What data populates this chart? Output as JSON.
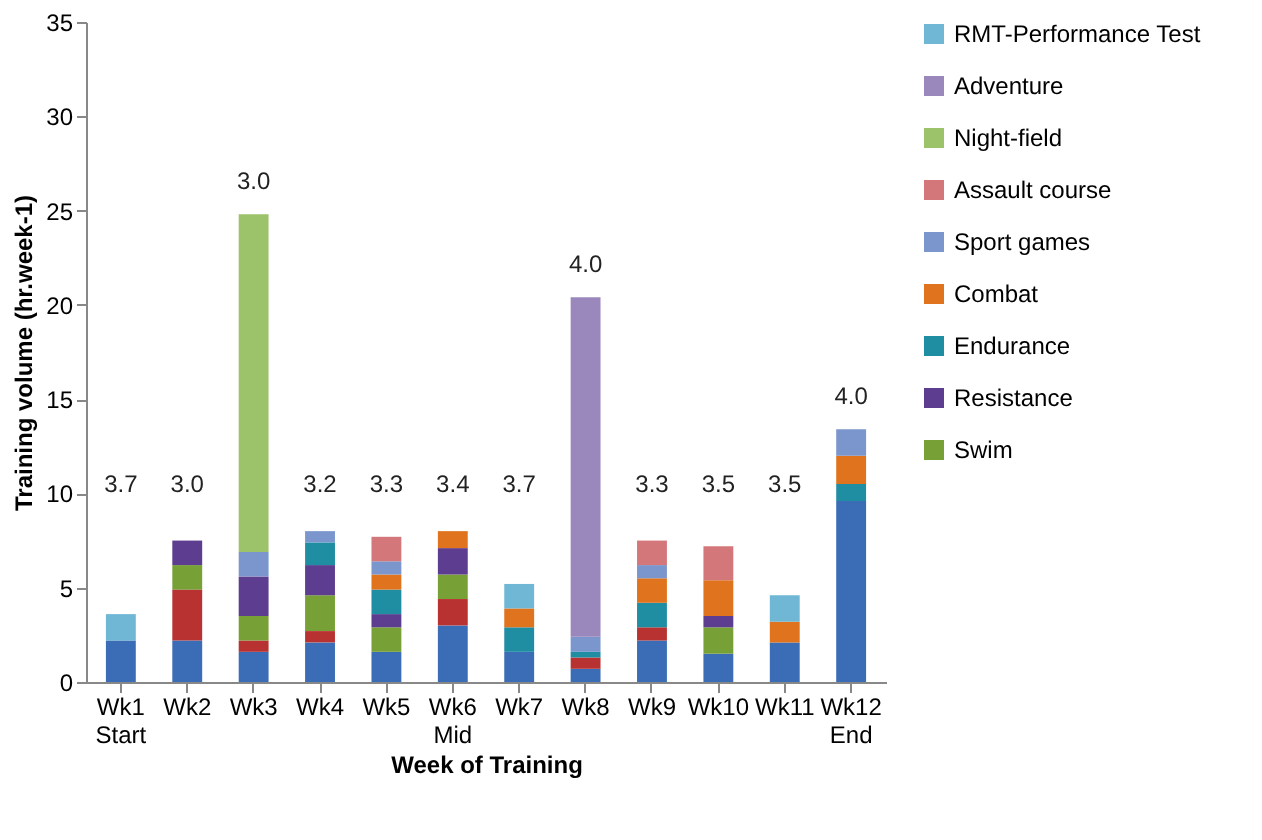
{
  "chart_data": {
    "type": "bar",
    "stacked": true,
    "xlabel": "Week of Training",
    "ylabel": "Training volume (hr.week-1)",
    "categories": [
      "Wk1 Start",
      "Wk2",
      "Wk3",
      "Wk4",
      "Wk5",
      "Wk6 Mid",
      "Wk7",
      "Wk8",
      "Wk9",
      "Wk10",
      "Wk11",
      "Wk12 End"
    ],
    "series": [
      {
        "color": "#3a6db5",
        "values": [
          2.2,
          2.2,
          1.6,
          2.1,
          1.6,
          3.0,
          1.6,
          0.7,
          2.2,
          1.5,
          2.1,
          9.6
        ]
      },
      {
        "color": "#b83232",
        "values": [
          null,
          2.7,
          0.6,
          0.6,
          null,
          1.4,
          null,
          0.6,
          0.7,
          null,
          null,
          null
        ]
      },
      {
        "name": "Swim",
        "color": "#77a136",
        "values": [
          null,
          1.3,
          1.3,
          1.9,
          1.3,
          1.3,
          null,
          null,
          null,
          1.4,
          null,
          null
        ]
      },
      {
        "name": "Resistance",
        "color": "#5c3d8f",
        "values": [
          null,
          1.3,
          2.1,
          1.6,
          0.7,
          1.4,
          null,
          null,
          null,
          0.6,
          null,
          null
        ]
      },
      {
        "name": "Endurance",
        "color": "#1f8ea3",
        "values": [
          null,
          null,
          null,
          1.2,
          1.3,
          null,
          1.3,
          0.3,
          1.3,
          null,
          null,
          0.9
        ]
      },
      {
        "name": "Combat",
        "color": "#e0731e",
        "values": [
          null,
          null,
          null,
          null,
          0.8,
          0.9,
          1.0,
          null,
          1.3,
          1.9,
          1.1,
          1.5
        ]
      },
      {
        "name": "Sport games",
        "color": "#7a96cc",
        "values": [
          null,
          null,
          1.3,
          0.6,
          0.7,
          null,
          null,
          0.8,
          0.7,
          null,
          null,
          1.4
        ]
      },
      {
        "name": "Assault course",
        "color": "#d4777a",
        "values": [
          null,
          null,
          null,
          null,
          1.3,
          null,
          null,
          null,
          1.3,
          1.8,
          null,
          null
        ]
      },
      {
        "name": "Night-field",
        "color": "#9cc26a",
        "values": [
          null,
          null,
          17.9,
          null,
          null,
          null,
          null,
          null,
          null,
          null,
          null,
          null
        ]
      },
      {
        "name": "Adventure",
        "color": "#9a88bd",
        "values": [
          null,
          null,
          null,
          null,
          null,
          null,
          null,
          18.0,
          null,
          null,
          null,
          null
        ]
      },
      {
        "name": "RMT-Performance Test",
        "color": "#6fb7d4",
        "values": [
          1.4,
          null,
          null,
          null,
          null,
          null,
          1.3,
          null,
          null,
          null,
          1.4,
          null
        ]
      }
    ],
    "ylim": [
      0,
      35
    ],
    "yticks": [
      0,
      5,
      10,
      15,
      20,
      25,
      30,
      35
    ],
    "grid": false,
    "legend": "right",
    "annotations": [
      "3.7",
      "3.0",
      "3.0",
      "3.2",
      "3.3",
      "3.4",
      "3.7",
      "4.0",
      "3.3",
      "3.5",
      "3.5",
      "4.0"
    ]
  }
}
